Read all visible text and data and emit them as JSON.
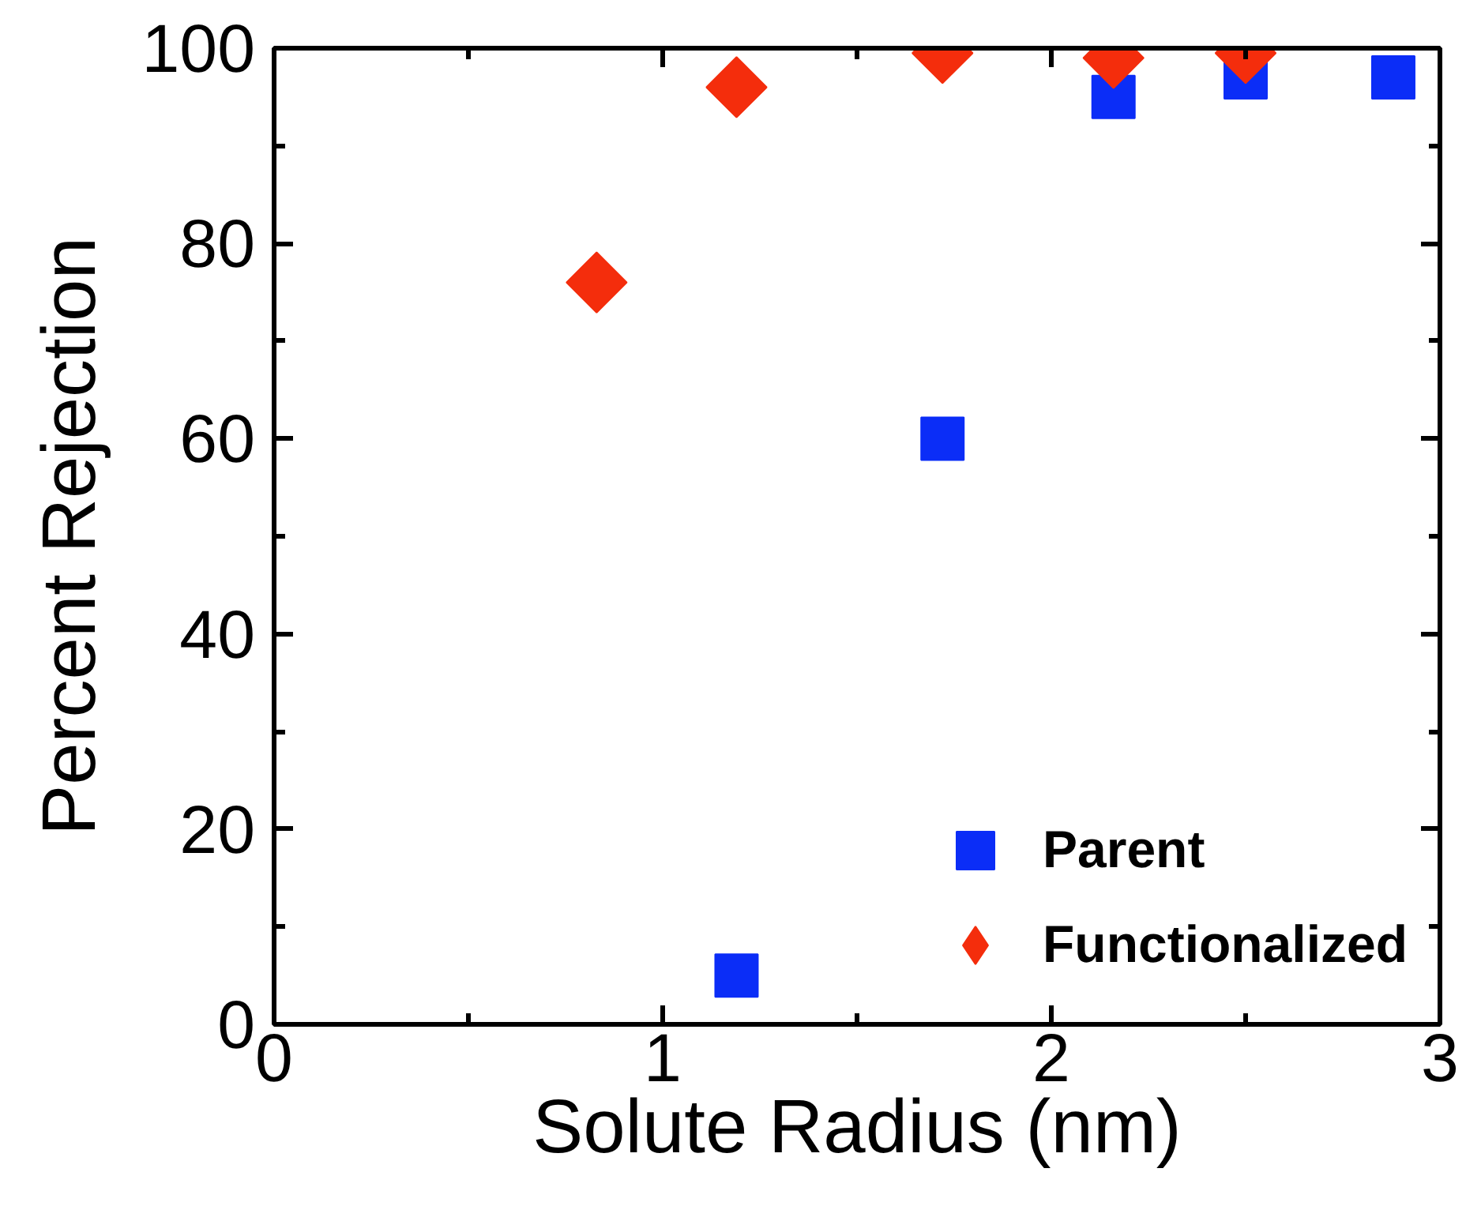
{
  "chart_data": {
    "type": "scatter",
    "xlabel": "Solute Radius (nm)",
    "ylabel": "Percent Rejection",
    "xlim": [
      0,
      3
    ],
    "ylim": [
      0,
      100
    ],
    "xticks": [
      0,
      {
        "value": 0.5,
        "label": null
      },
      1,
      {
        "value": 1.5,
        "label": null
      },
      2,
      {
        "value": 2.5,
        "label": null
      },
      3
    ],
    "yticks": [
      0,
      {
        "value": 10,
        "label": null
      },
      20,
      {
        "value": 30,
        "label": null
      },
      40,
      {
        "value": 50,
        "label": null
      },
      60,
      {
        "value": 70,
        "label": null
      },
      80,
      {
        "value": 90,
        "label": null
      },
      100
    ],
    "grid": false,
    "legend": "bottom right",
    "series": [
      {
        "name": "Parent",
        "color": "#0b2df7",
        "marker": "square",
        "x": [
          1.19,
          1.72,
          2.16,
          2.5,
          2.88
        ],
        "values": [
          5,
          60,
          95,
          97,
          97
        ]
      },
      {
        "name": "Functionalized",
        "color": "#f42d0c",
        "marker": "diamond",
        "x": [
          0.83,
          1.19,
          1.72,
          2.16,
          2.5
        ],
        "values": [
          76,
          96,
          99.5,
          99,
          99.5
        ]
      }
    ]
  }
}
